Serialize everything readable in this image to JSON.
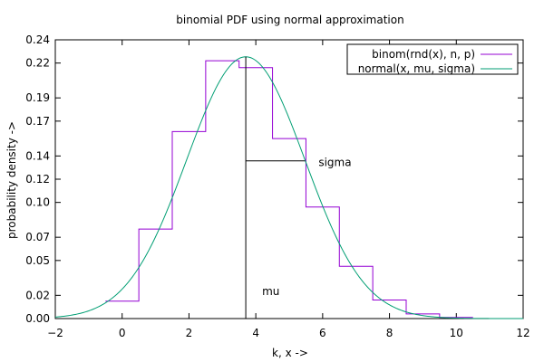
{
  "chart_data": {
    "type": "line",
    "title": "binomial PDF using normal approximation",
    "xlabel": "k, x ->",
    "ylabel": "probability density ->",
    "xlim": [
      -2,
      12
    ],
    "ylim": [
      0,
      0.24
    ],
    "xticks": [
      -2,
      0,
      2,
      4,
      6,
      8,
      10,
      12
    ],
    "yticks": [
      0.0,
      0.02,
      0.05,
      0.07,
      0.1,
      0.12,
      0.14,
      0.17,
      0.19,
      0.22,
      0.24
    ],
    "ytick_labels": [
      "0.00",
      "0.02",
      "0.05",
      "0.07",
      "0.10",
      "0.12",
      "0.14",
      "0.17",
      "0.19",
      "0.22",
      "0.24"
    ],
    "grid": false,
    "legend": "top-right",
    "colors": {
      "binomial": "#9400d3",
      "normal": "#009e73",
      "frame": "#000000"
    },
    "series": [
      {
        "name": "binom(rnd(x), n, p)",
        "style": "steps",
        "k": [
          0,
          1,
          2,
          3,
          4,
          5,
          6,
          7,
          8,
          9,
          10
        ],
        "values": [
          0.015,
          0.077,
          0.161,
          0.222,
          0.216,
          0.155,
          0.096,
          0.045,
          0.016,
          0.004,
          0.001
        ]
      },
      {
        "name": "normal(x, mu, sigma)",
        "style": "curve",
        "mu": 3.7,
        "sigma": 1.77
      }
    ],
    "annotations": [
      {
        "label": "mu",
        "x": 3.7
      },
      {
        "label": "sigma",
        "from": 3.7,
        "to": 5.47,
        "y": 0.1358
      }
    ]
  }
}
